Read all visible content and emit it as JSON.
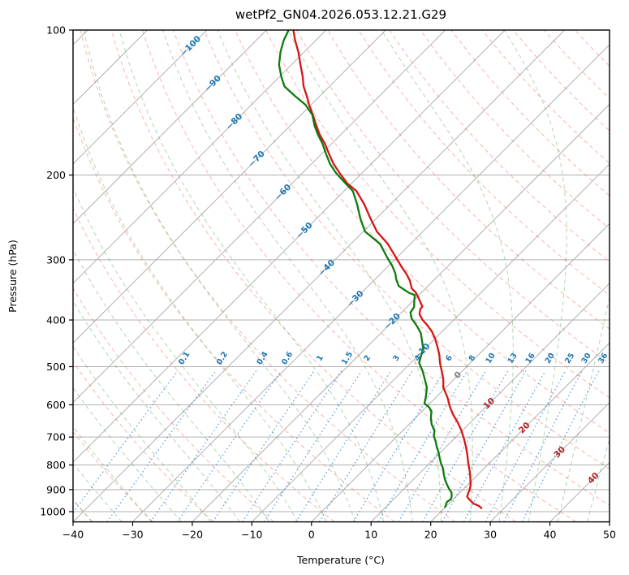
{
  "chart_data": {
    "type": "line",
    "subtype": "skewT-logP-sounding",
    "title": "wetPf2_GN04.2026.053.12.21.G29",
    "xlabel": "Temperature (°C)",
    "ylabel": "Pressure (hPa)",
    "x_ticks": [
      -40,
      -30,
      -20,
      -10,
      0,
      10,
      20,
      30,
      40,
      50
    ],
    "pressure_ticks": [
      100,
      200,
      300,
      400,
      500,
      600,
      700,
      800,
      900,
      1000
    ],
    "xlim_bottom": [
      -40,
      50
    ],
    "pressure_lim": [
      1050,
      100
    ],
    "skew": "45deg_display",
    "grid": "on",
    "series": [
      {
        "name": "temperature",
        "units": "degC_vs_hPa",
        "points": [
          [
            100,
            -85.5
          ],
          [
            105,
            -83.5
          ],
          [
            111,
            -81.0
          ],
          [
            118,
            -78.5
          ],
          [
            125,
            -76.1
          ],
          [
            131,
            -74.3
          ],
          [
            137,
            -72.2
          ],
          [
            143,
            -70.3
          ],
          [
            150,
            -68.0
          ],
          [
            158,
            -65.6
          ],
          [
            165,
            -63.5
          ],
          [
            172,
            -61.2
          ],
          [
            181,
            -58.7
          ],
          [
            190,
            -56.2
          ],
          [
            198,
            -53.8
          ],
          [
            208,
            -50.8
          ],
          [
            216,
            -47.9
          ],
          [
            230,
            -44.4
          ],
          [
            246,
            -41.0
          ],
          [
            262,
            -37.7
          ],
          [
            278,
            -33.8
          ],
          [
            299,
            -29.7
          ],
          [
            310,
            -27.7
          ],
          [
            320,
            -25.8
          ],
          [
            331,
            -24.0
          ],
          [
            344,
            -22.3
          ],
          [
            351,
            -20.9
          ],
          [
            362,
            -19.3
          ],
          [
            375,
            -17.5
          ],
          [
            380,
            -17.4
          ],
          [
            389,
            -16.7
          ],
          [
            400,
            -15.2
          ],
          [
            409,
            -13.7
          ],
          [
            422,
            -11.8
          ],
          [
            437,
            -10.0
          ],
          [
            455,
            -8.2
          ],
          [
            473,
            -6.5
          ],
          [
            491,
            -5.1
          ],
          [
            511,
            -3.4
          ],
          [
            531,
            -1.8
          ],
          [
            554,
            -0.3
          ],
          [
            559,
            0.2
          ],
          [
            581,
            2.1
          ],
          [
            604,
            3.8
          ],
          [
            628,
            5.7
          ],
          [
            652,
            7.8
          ],
          [
            678,
            9.8
          ],
          [
            705,
            11.6
          ],
          [
            733,
            13.3
          ],
          [
            762,
            14.9
          ],
          [
            792,
            16.4
          ],
          [
            823,
            18.0
          ],
          [
            856,
            19.5
          ],
          [
            883,
            20.6
          ],
          [
            902,
            21.2
          ],
          [
            913,
            21.4
          ],
          [
            931,
            21.9
          ],
          [
            943,
            22.7
          ],
          [
            962,
            24.1
          ],
          [
            974,
            25.5
          ],
          [
            983,
            26.2
          ]
        ]
      },
      {
        "name": "dewpoint",
        "units": "degC_vs_hPa",
        "points": [
          [
            100,
            -86.3
          ],
          [
            105,
            -85.4
          ],
          [
            111,
            -84.0
          ],
          [
            118,
            -82.1
          ],
          [
            125,
            -79.7
          ],
          [
            131,
            -77.5
          ],
          [
            137,
            -74.2
          ],
          [
            143,
            -70.9
          ],
          [
            150,
            -68.1
          ],
          [
            158,
            -65.9
          ],
          [
            165,
            -63.8
          ],
          [
            172,
            -61.6
          ],
          [
            181,
            -59.2
          ],
          [
            190,
            -56.8
          ],
          [
            198,
            -54.4
          ],
          [
            208,
            -51.1
          ],
          [
            216,
            -48.5
          ],
          [
            230,
            -45.6
          ],
          [
            246,
            -42.7
          ],
          [
            262,
            -39.7
          ],
          [
            278,
            -35.1
          ],
          [
            299,
            -31.2
          ],
          [
            308,
            -29.5
          ],
          [
            320,
            -27.6
          ],
          [
            329,
            -26.5
          ],
          [
            340,
            -24.9
          ],
          [
            351,
            -22.1
          ],
          [
            355,
            -20.7
          ],
          [
            364,
            -19.9
          ],
          [
            376,
            -18.8
          ],
          [
            386,
            -18.5
          ],
          [
            397,
            -17.3
          ],
          [
            412,
            -15.1
          ],
          [
            426,
            -13.3
          ],
          [
            443,
            -11.7
          ],
          [
            460,
            -10.2
          ],
          [
            474,
            -9.5
          ],
          [
            491,
            -8.6
          ],
          [
            511,
            -6.6
          ],
          [
            531,
            -4.9
          ],
          [
            552,
            -3.2
          ],
          [
            575,
            -1.9
          ],
          [
            596,
            -0.9
          ],
          [
            607,
            0.5
          ],
          [
            619,
            1.6
          ],
          [
            631,
            2.2
          ],
          [
            644,
            2.9
          ],
          [
            660,
            3.9
          ],
          [
            678,
            5.3
          ],
          [
            696,
            6.1
          ],
          [
            714,
            7.3
          ],
          [
            733,
            8.4
          ],
          [
            752,
            9.6
          ],
          [
            772,
            10.7
          ],
          [
            792,
            11.8
          ],
          [
            813,
            13.1
          ],
          [
            834,
            14.1
          ],
          [
            856,
            15.2
          ],
          [
            879,
            16.5
          ],
          [
            896,
            17.5
          ],
          [
            913,
            18.6
          ],
          [
            931,
            19.3
          ],
          [
            943,
            19.6
          ],
          [
            952,
            19.4
          ],
          [
            962,
            19.5
          ],
          [
            971,
            19.8
          ],
          [
            978,
            19.9
          ]
        ]
      }
    ],
    "isotherms": {
      "start": -150,
      "end": 60,
      "step": 10
    },
    "isotherm_labels": [
      {
        "t": -100,
        "y": 57
      },
      {
        "t": -90,
        "y": 103
      },
      {
        "t": -80,
        "y": 150
      },
      {
        "t": -70,
        "y": 196
      },
      {
        "t": -60,
        "y": 237
      },
      {
        "t": -50,
        "y": 284
      },
      {
        "t": -40,
        "y": 330
      },
      {
        "t": -30,
        "y": 368
      },
      {
        "t": -20,
        "y": 396
      },
      {
        "t": -10,
        "y": 433
      },
      {
        "t": 0,
        "y": 462
      },
      {
        "t": 10,
        "y": 497
      },
      {
        "t": 20,
        "y": 527
      },
      {
        "t": 30,
        "y": 557
      },
      {
        "t": 40,
        "y": 589
      }
    ],
    "dry_adiabats": {
      "theta_start": -60,
      "theta_end": 190,
      "step": 10
    },
    "moist_adiabats": {
      "thetaw_start": -40,
      "thetaw_end": 55,
      "step": 5
    },
    "mixing_ratio_values": [
      0.1,
      0.2,
      0.4,
      0.6,
      1,
      1.5,
      2,
      3,
      4,
      6,
      8,
      10,
      13,
      16,
      20,
      25,
      30,
      36
    ],
    "mixing_ratio_label_pressure": 483,
    "mixing_ratio_top_pressure": 500
  },
  "colors": {
    "temperature_line": "#d71414",
    "dewpoint_line": "#0e7a0e",
    "isotherm": "#b0b0b0",
    "isobar": "#b0b0b0",
    "dry_adiabat": "rgba(235,90,70,0.45)",
    "moist_adiabat": "rgba(80,165,85,0.45)",
    "mixing_ratio": "rgba(45,125,210,0.75)",
    "label_negative": "#1f77b4",
    "label_zero": "#808080",
    "label_positive": "#b22222",
    "spine": "#000000"
  }
}
